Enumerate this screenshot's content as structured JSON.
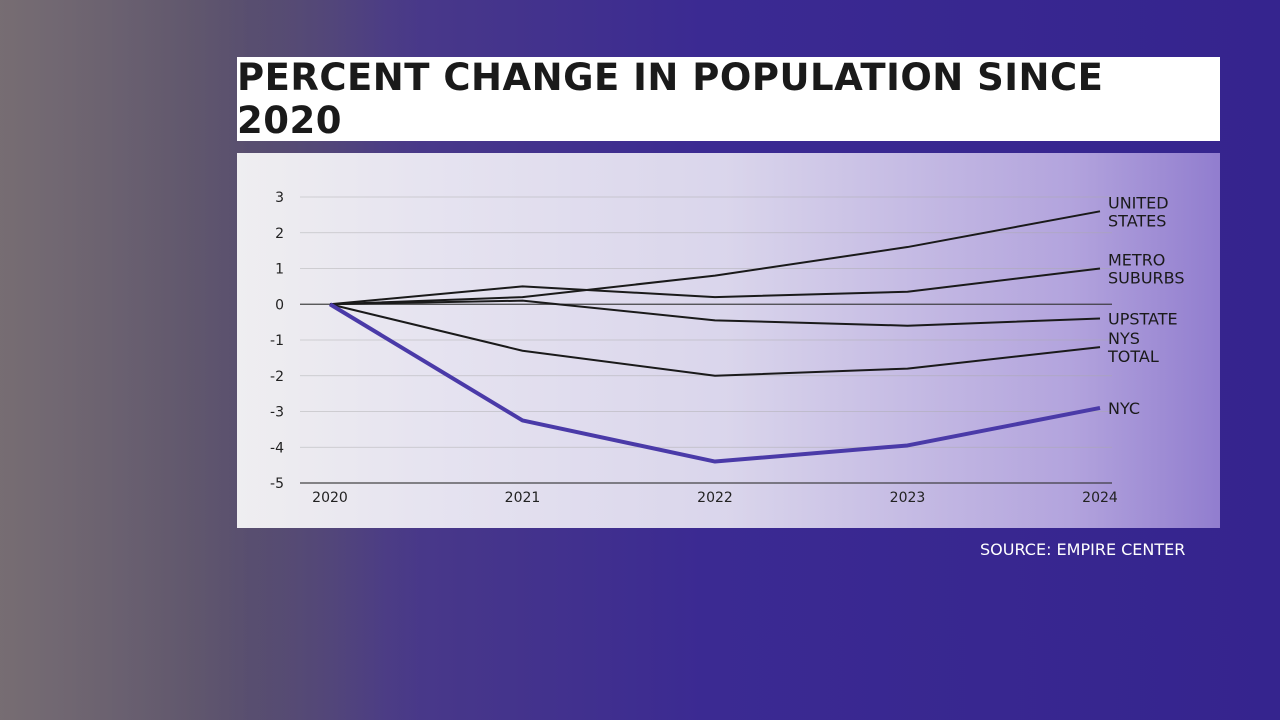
{
  "chart_data": {
    "type": "line",
    "title": "PERCENT CHANGE IN POPULATION SINCE 2020",
    "x": [
      "2020",
      "2021",
      "2022",
      "2023",
      "2024"
    ],
    "ylim": [
      -5,
      3
    ],
    "yticks": [
      3,
      2,
      1,
      0,
      -1,
      -2,
      -3,
      -4,
      -5
    ],
    "grid": true,
    "series": [
      {
        "name": [
          "UNITED",
          "STATES"
        ],
        "color": "#1a1a1a",
        "values": [
          0,
          0.2,
          0.8,
          1.6,
          2.6
        ]
      },
      {
        "name": [
          "METRO",
          "SUBURBS"
        ],
        "color": "#1a1a1a",
        "values": [
          0,
          0.5,
          0.2,
          0.35,
          1.0
        ]
      },
      {
        "name": [
          "UPSTATE"
        ],
        "color": "#1a1a1a",
        "values": [
          0,
          0.1,
          -0.45,
          -0.6,
          -0.4
        ]
      },
      {
        "name": [
          "NYS",
          "TOTAL"
        ],
        "color": "#1a1a1a",
        "values": [
          0,
          -1.3,
          -2.0,
          -1.8,
          -1.2
        ]
      },
      {
        "name": [
          "NYC"
        ],
        "color": "#4a3aa8",
        "values": [
          0,
          -3.25,
          -4.4,
          -3.95,
          -2.9
        ]
      }
    ]
  },
  "source": "SOURCE: EMPIRE CENTER"
}
